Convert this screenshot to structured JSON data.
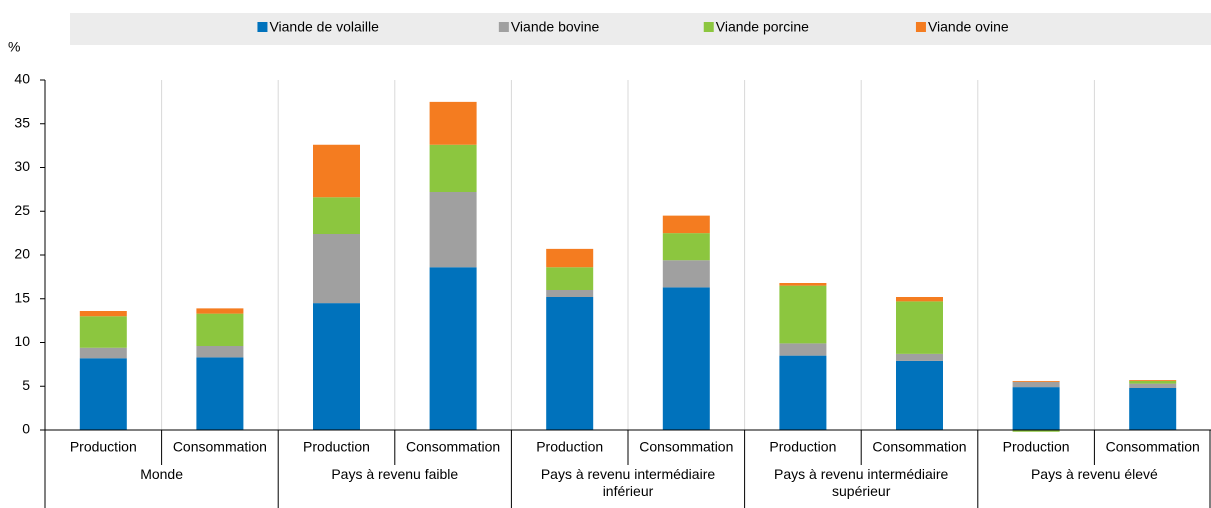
{
  "chart_data": {
    "type": "stacked_bar",
    "y_label": "%",
    "categories": [
      "Production",
      "Consommation",
      "Production",
      "Consommation",
      "Production",
      "Consommation",
      "Production",
      "Consommation",
      "Production",
      "Consommation"
    ],
    "groups": [
      "Monde",
      "Pays à revenu faible",
      "Pays à revenu intermédiaire inférieur",
      "Pays à revenu intermédiaire supérieur",
      "Pays à revenu élevé"
    ],
    "series": [
      {
        "name": "Viande de volaille",
        "color": "#0072bc",
        "values": [
          8.2,
          8.3,
          14.5,
          18.6,
          15.2,
          16.3,
          8.5,
          7.9,
          4.9,
          4.8
        ]
      },
      {
        "name": "Viande bovine",
        "color": "#a0a0a0",
        "values": [
          1.2,
          1.3,
          7.9,
          8.6,
          0.8,
          3.1,
          1.4,
          0.8,
          0.6,
          0.5
        ]
      },
      {
        "name": "Viande porcine",
        "color": "#8cc63f",
        "values": [
          3.6,
          3.7,
          4.2,
          5.4,
          2.6,
          3.1,
          6.6,
          6.0,
          -0.2,
          0.3
        ]
      },
      {
        "name": "Viande ovine",
        "color": "#f47c20",
        "values": [
          0.6,
          0.6,
          6.0,
          4.9,
          2.1,
          2.0,
          0.3,
          0.5,
          0.1,
          0.1
        ]
      }
    ],
    "ylim": [
      0,
      40
    ],
    "yticks": [
      0,
      5,
      10,
      15,
      20,
      25,
      30,
      35,
      40
    ],
    "grid": false
  }
}
